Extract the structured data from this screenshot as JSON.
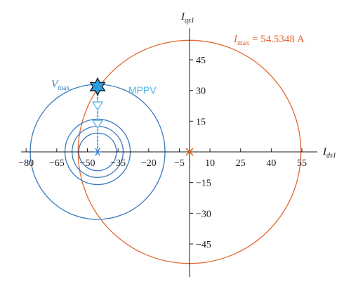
{
  "chart_data": {
    "type": "scatter",
    "x_axis": {
      "label_main": "I",
      "label_sub": "ds1",
      "ticks": [
        -80,
        -65,
        -50,
        -35,
        -20,
        -5,
        10,
        25,
        40,
        55
      ],
      "tick_labels": [
        "−80",
        "−65",
        "−50",
        "−35",
        "−20",
        "−5",
        "10",
        "25",
        "40",
        "55"
      ],
      "range": [
        -82,
        58
      ]
    },
    "y_axis": {
      "label_main": "I",
      "label_sub": "qs1",
      "ticks": [
        -45,
        -30,
        -15,
        15,
        30,
        45
      ],
      "tick_labels": [
        "−45",
        "−30",
        "−15",
        "15",
        "30",
        "45"
      ],
      "range": [
        -58,
        58
      ]
    },
    "current_limit_circle": {
      "center": [
        0,
        0
      ],
      "radius": 54.5348,
      "color": "#e2672f",
      "label_main": "I",
      "label_sub": "max",
      "label_rest": " = 54.5348 A"
    },
    "voltage_limit_circles": {
      "center": [
        -45,
        0
      ],
      "radii": [
        33,
        16,
        12.5,
        9.2
      ],
      "color": "#3a7ac0",
      "label_main": "V",
      "label_sub": "max"
    },
    "voltage_center_marker": {
      "x": -45,
      "y": 0,
      "color": "#3a7ac0"
    },
    "origin_marker": {
      "x": 0,
      "y": 0,
      "color": "#e2672f"
    },
    "mppv": {
      "label": "MPPV",
      "color": "#4fb3e8",
      "path": [
        [
          -45,
          0
        ],
        [
          -45,
          13
        ],
        [
          -45,
          22
        ],
        [
          -45,
          31.9
        ]
      ],
      "triangles": [
        [
          -45,
          22
        ],
        [
          -45,
          13
        ]
      ],
      "star": [
        -45,
        31.9
      ],
      "star_color": "#2b9ee0"
    }
  }
}
